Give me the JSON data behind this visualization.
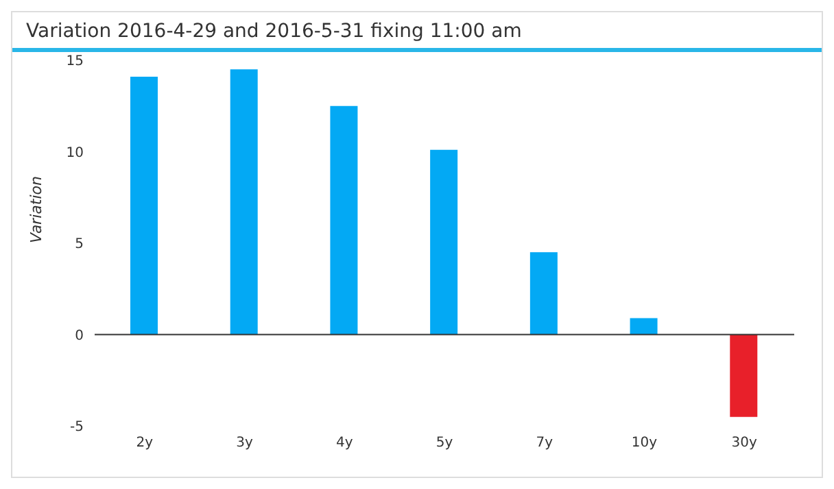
{
  "chart_data": {
    "type": "bar",
    "title": "Variation 2016-4-29 and 2016-5-31 fixing 11:00 am",
    "ylabel": "Variation",
    "categories": [
      "2y",
      "3y",
      "4y",
      "5y",
      "7y",
      "10y",
      "30y"
    ],
    "values": [
      14.1,
      14.5,
      12.5,
      10.1,
      4.5,
      0.9,
      -4.5
    ],
    "colors": [
      "#03a9f4",
      "#03a9f4",
      "#03a9f4",
      "#03a9f4",
      "#03a9f4",
      "#03a9f4",
      "#e8202a"
    ],
    "ylim": [
      -5,
      15
    ],
    "yticks": [
      -5,
      0,
      5,
      10,
      15
    ],
    "grid": false,
    "ref_lines": [
      {
        "axis": "y",
        "value": 0,
        "color": "#333333"
      }
    ]
  }
}
